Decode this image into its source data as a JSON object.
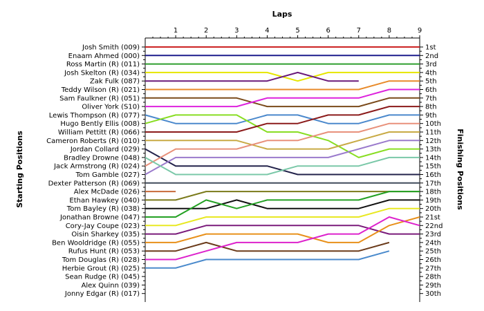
{
  "chart_data": {
    "type": "line",
    "title": "",
    "xlabel": "Laps",
    "ylabel_left": "Starting Positions",
    "ylabel_right": "Finishing Positions",
    "lap_ticks": [
      "1",
      "2",
      "3",
      "4",
      "5",
      "6",
      "7",
      "8",
      "9"
    ],
    "xlim": [
      0,
      9
    ],
    "ylim": [
      1,
      30
    ],
    "y_reversed": true,
    "grid": false,
    "start_labels": [
      "Josh Smith (009)",
      "Enaam Ahmed (000)",
      "Ross Martin (R) (011)",
      "Josh Skelton (R) (034)",
      "Zak Fulk (087)",
      "Teddy Wilson (R) (021)",
      "Sam Faulkner (R) (051)",
      "Oliver York (S10)",
      "Lewis Thompson (R) (077)",
      "Hugo Bently Ellis (008)",
      "William Pettitt (R) (066)",
      "Cameron Roberts (R) (010)",
      "Jordan Collard (029)",
      "Bradley Drowne (048)",
      "Jack Armstrong (R) (024)",
      "Tom Gamble (027)",
      "Dexter Patterson (R) (069)",
      "Alex McDade (026)",
      "Ethan Hawkey (040)",
      "Tom Bayley (R) (038)",
      "Jonathan Browne (047)",
      "Cory-Jay Coupe (023)",
      "Oisin Sharkey (035)",
      "Ben Wooldridge (R) (055)",
      "Rufus Hunt (R) (053)",
      "Tom Douglas (R) (028)",
      "Herbie Grout (R) (025)",
      "Sean Rudge (R) (045)",
      "Alex Quinn (039)",
      "Jonny Edgar (R) (017)"
    ],
    "finish_labels": [
      "1st",
      "2nd",
      "3rd",
      "4th",
      "5th",
      "6th",
      "7th",
      "8th",
      "9th",
      "10th",
      "11th",
      "12th",
      "13th",
      "14th",
      "15th",
      "16th",
      "17th",
      "18th",
      "19th",
      "20th",
      "21st",
      "22nd",
      "23rd",
      "24th",
      "25th",
      "26th",
      "27th",
      "28th",
      "29th",
      "30th"
    ],
    "series": [
      {
        "color": "#cc2222",
        "positions": [
          1,
          1,
          1,
          1,
          1,
          1,
          1,
          1,
          1,
          1
        ]
      },
      {
        "color": "#1a1a8c",
        "positions": [
          2,
          2,
          2,
          2,
          2,
          2,
          2,
          2,
          2,
          2
        ]
      },
      {
        "color": "#2e9e2e",
        "positions": [
          3,
          3,
          3,
          3,
          3,
          3,
          3,
          3,
          3,
          3
        ]
      },
      {
        "color": "#e6e600",
        "positions": [
          4,
          4,
          4,
          4,
          4,
          5,
          4,
          4,
          4,
          4
        ]
      },
      {
        "color": "#6a1a7a",
        "positions": [
          5,
          5,
          5,
          5,
          5,
          4,
          5,
          5
        ]
      },
      {
        "color": "#e88a2a",
        "positions": [
          6,
          6,
          6,
          6,
          6,
          6,
          6,
          6,
          5,
          5
        ]
      },
      {
        "color": "#7a4a1a",
        "positions": [
          7,
          7,
          7,
          7,
          8,
          8,
          8,
          8,
          7,
          7
        ]
      },
      {
        "color": "#dd22dd",
        "positions": [
          8,
          8,
          8,
          8,
          7,
          7,
          7,
          7,
          6,
          6
        ]
      },
      {
        "color": "#4a88cc",
        "positions": [
          9,
          10,
          10,
          10,
          9,
          9,
          10,
          10,
          9,
          9
        ]
      },
      {
        "color": "#88dd22",
        "positions": [
          10,
          9,
          9,
          9,
          11,
          11,
          12,
          14,
          13,
          13
        ]
      },
      {
        "color": "#8b1a1a",
        "positions": [
          11,
          11,
          11,
          11,
          10,
          10,
          9,
          9,
          8,
          8
        ]
      },
      {
        "color": "#c8aa44",
        "positions": [
          12,
          12,
          12,
          12,
          13,
          13,
          13,
          12,
          11,
          11
        ]
      },
      {
        "color": "#22224a",
        "positions": [
          13,
          15,
          15,
          15,
          15,
          16,
          16,
          16,
          16,
          16
        ]
      },
      {
        "color": "#9a7acc",
        "positions": [
          16,
          14,
          14,
          14,
          14,
          14,
          14,
          13,
          12,
          12
        ]
      },
      {
        "color": "#e8907a",
        "positions": [
          15,
          13,
          13,
          13,
          12,
          12,
          11,
          11,
          10,
          10
        ]
      },
      {
        "color": "#7ac8a8",
        "positions": [
          14,
          16,
          16,
          16,
          16,
          15,
          15,
          15,
          14,
          14
        ]
      },
      {
        "color": "#404a5a",
        "positions": [
          17,
          17,
          17,
          17,
          17,
          17,
          17,
          17,
          17,
          17
        ]
      },
      {
        "color": "#c86a3a",
        "positions": [
          18,
          18
        ]
      },
      {
        "color": "#7a7a1a",
        "positions": [
          19,
          19,
          18,
          18,
          18,
          18,
          18,
          18,
          18,
          18
        ]
      },
      {
        "color": "#111111",
        "positions": [
          20,
          20,
          20,
          19,
          20,
          20,
          20,
          20,
          19,
          19
        ]
      },
      {
        "color": "#22a022",
        "positions": [
          21,
          21,
          19,
          20,
          19,
          19,
          19,
          19,
          18,
          18
        ]
      },
      {
        "color": "#e8e822",
        "positions": [
          22,
          22,
          21,
          21,
          21,
          21,
          21,
          21,
          20,
          20
        ]
      },
      {
        "color": "#7a1a7a",
        "positions": [
          23,
          23,
          22,
          22,
          22,
          22,
          22,
          22,
          23,
          23
        ]
      },
      {
        "color": "#e8901a",
        "positions": [
          24,
          24,
          23,
          23,
          23,
          23,
          24,
          24,
          22,
          21
        ]
      },
      {
        "color": "#6a3a1a",
        "positions": [
          25,
          25,
          24,
          25,
          25,
          25,
          25,
          25,
          24
        ]
      },
      {
        "color": "#dd22cc",
        "positions": [
          26,
          26,
          25,
          24,
          24,
          24,
          23,
          23,
          21,
          22
        ]
      },
      {
        "color": "#4a8acc",
        "positions": [
          27,
          27,
          26,
          26,
          26,
          26,
          26,
          26,
          25
        ]
      }
    ]
  }
}
